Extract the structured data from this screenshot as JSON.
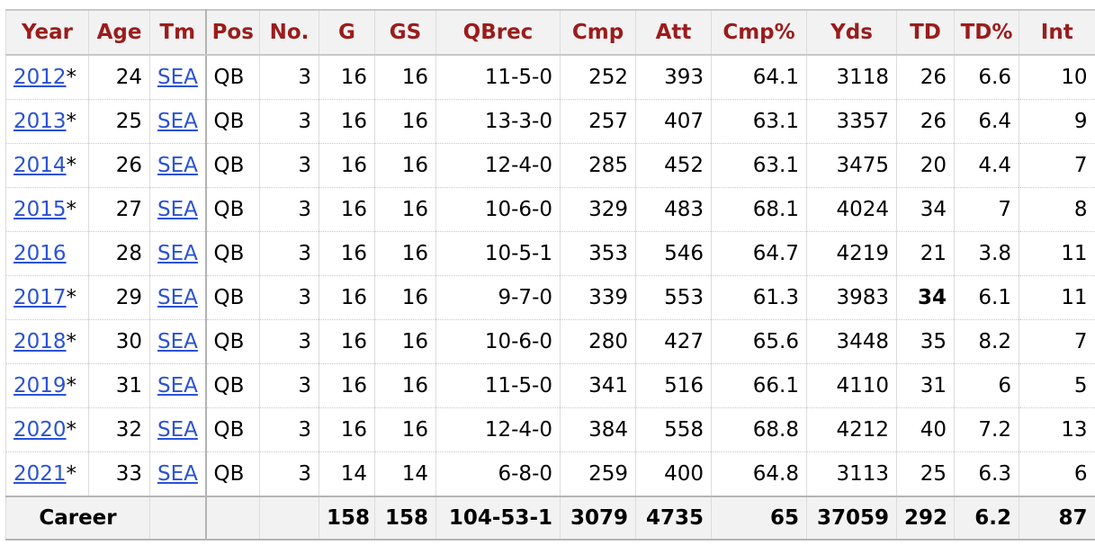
{
  "headers": [
    "Year",
    "Age",
    "Tm",
    "Pos",
    "No.",
    "G",
    "GS",
    "QBrec",
    "Cmp",
    "Att",
    "Cmp%",
    "Yds",
    "TD",
    "TD%",
    "Int"
  ],
  "rows": [
    {
      "year": "2012",
      "mark": "*",
      "age": "24",
      "tm": "SEA",
      "pos": "QB",
      "no": "3",
      "g": "16",
      "gs": "16",
      "qbrec": "11-5-0",
      "cmp": "252",
      "att": "393",
      "cmp_pct": "64.1",
      "yds": "3118",
      "td": "26",
      "td_pct": "6.6",
      "int": "10"
    },
    {
      "year": "2013",
      "mark": "*",
      "age": "25",
      "tm": "SEA",
      "pos": "QB",
      "no": "3",
      "g": "16",
      "gs": "16",
      "qbrec": "13-3-0",
      "cmp": "257",
      "att": "407",
      "cmp_pct": "63.1",
      "yds": "3357",
      "td": "26",
      "td_pct": "6.4",
      "int": "9"
    },
    {
      "year": "2014",
      "mark": "*",
      "age": "26",
      "tm": "SEA",
      "pos": "QB",
      "no": "3",
      "g": "16",
      "gs": "16",
      "qbrec": "12-4-0",
      "cmp": "285",
      "att": "452",
      "cmp_pct": "63.1",
      "yds": "3475",
      "td": "20",
      "td_pct": "4.4",
      "int": "7"
    },
    {
      "year": "2015",
      "mark": "*",
      "age": "27",
      "tm": "SEA",
      "pos": "QB",
      "no": "3",
      "g": "16",
      "gs": "16",
      "qbrec": "10-6-0",
      "cmp": "329",
      "att": "483",
      "cmp_pct": "68.1",
      "yds": "4024",
      "td": "34",
      "td_pct": "7",
      "int": "8"
    },
    {
      "year": "2016",
      "mark": "",
      "age": "28",
      "tm": "SEA",
      "pos": "QB",
      "no": "3",
      "g": "16",
      "gs": "16",
      "qbrec": "10-5-1",
      "cmp": "353",
      "att": "546",
      "cmp_pct": "64.7",
      "yds": "4219",
      "td": "21",
      "td_pct": "3.8",
      "int": "11"
    },
    {
      "year": "2017",
      "mark": "*",
      "age": "29",
      "tm": "SEA",
      "pos": "QB",
      "no": "3",
      "g": "16",
      "gs": "16",
      "qbrec": "9-7-0",
      "cmp": "339",
      "att": "553",
      "cmp_pct": "61.3",
      "yds": "3983",
      "td": "34",
      "td_bold": true,
      "td_pct": "6.1",
      "int": "11"
    },
    {
      "year": "2018",
      "mark": "*",
      "age": "30",
      "tm": "SEA",
      "pos": "QB",
      "no": "3",
      "g": "16",
      "gs": "16",
      "qbrec": "10-6-0",
      "cmp": "280",
      "att": "427",
      "cmp_pct": "65.6",
      "yds": "3448",
      "td": "35",
      "td_pct": "8.2",
      "int": "7"
    },
    {
      "year": "2019",
      "mark": "*",
      "age": "31",
      "tm": "SEA",
      "pos": "QB",
      "no": "3",
      "g": "16",
      "gs": "16",
      "qbrec": "11-5-0",
      "cmp": "341",
      "att": "516",
      "cmp_pct": "66.1",
      "yds": "4110",
      "td": "31",
      "td_pct": "6",
      "int": "5"
    },
    {
      "year": "2020",
      "mark": "*",
      "age": "32",
      "tm": "SEA",
      "pos": "QB",
      "no": "3",
      "g": "16",
      "gs": "16",
      "qbrec": "12-4-0",
      "cmp": "384",
      "att": "558",
      "cmp_pct": "68.8",
      "yds": "4212",
      "td": "40",
      "td_pct": "7.2",
      "int": "13"
    },
    {
      "year": "2021",
      "mark": "*",
      "age": "33",
      "tm": "SEA",
      "pos": "QB",
      "no": "3",
      "g": "14",
      "gs": "14",
      "qbrec": "6-8-0",
      "cmp": "259",
      "att": "400",
      "cmp_pct": "64.8",
      "yds": "3113",
      "td": "25",
      "td_pct": "6.3",
      "int": "6"
    }
  ],
  "career": {
    "label": "Career",
    "g": "158",
    "gs": "158",
    "qbrec": "104-53-1",
    "cmp": "3079",
    "att": "4735",
    "cmp_pct": "65",
    "yds": "37059",
    "td": "292",
    "td_pct": "6.2",
    "int": "87"
  },
  "colors": {
    "header_text": "#9b1c1c",
    "link": "#2a52d8",
    "header_bg": "#f2f2f2"
  }
}
